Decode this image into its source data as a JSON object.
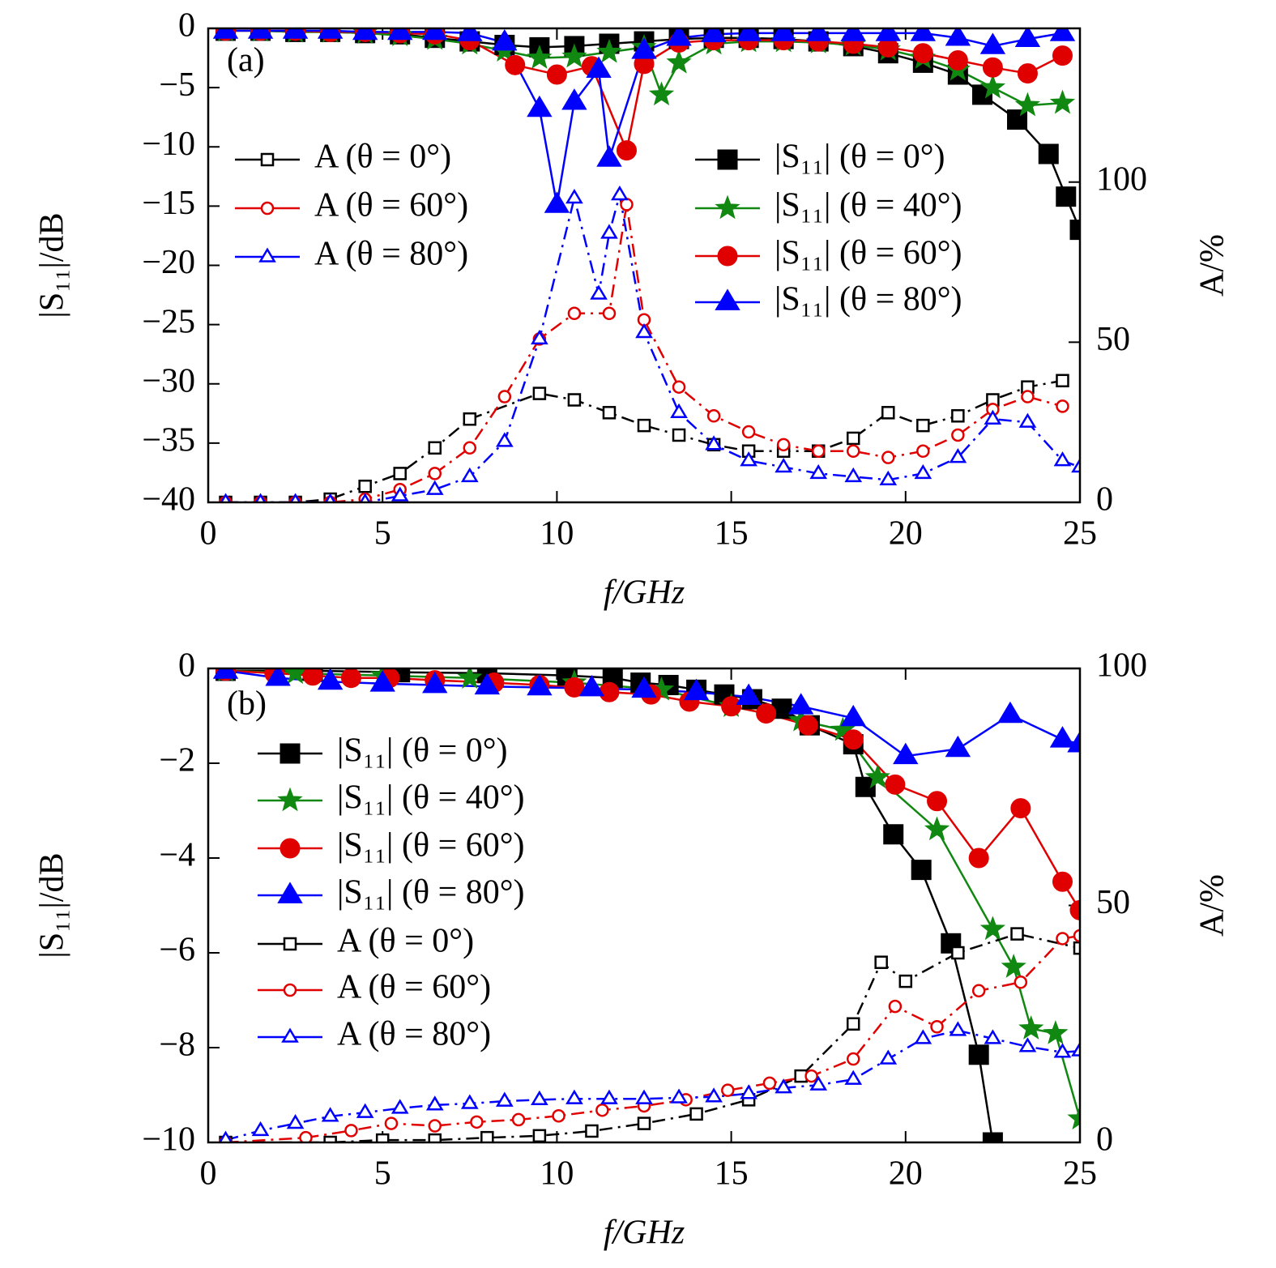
{
  "chart_data": [
    {
      "type": "line",
      "panel_label": "(a)",
      "xlabel": "f/GHz",
      "ylabel": "|S₁₁|/dB",
      "y2label": "A/%",
      "xlim": [
        0,
        25
      ],
      "xticks": [
        0,
        5,
        10,
        15,
        20,
        25
      ],
      "ylim": [
        -40,
        0
      ],
      "yticks": [
        0,
        {
          "value": -5,
          "label": "−5"
        },
        {
          "value": -10,
          "label": "−10"
        },
        {
          "value": -15,
          "label": "−15"
        },
        {
          "value": -20,
          "label": "−20"
        },
        {
          "value": -25,
          "label": "−25"
        },
        {
          "value": -30,
          "label": "−30"
        },
        {
          "value": -35,
          "label": "−35"
        },
        {
          "value": -40,
          "label": "−40"
        }
      ],
      "y2lim": [
        0,
        148
      ],
      "y2ticks": [
        0,
        50,
        100
      ],
      "series": [
        {
          "name": "A (θ = 0°)",
          "color": "#000000",
          "marker": "square",
          "filled": false,
          "line_style": "dashdot",
          "axis": "y2",
          "x": [
            0.5,
            1.5,
            2.5,
            3.5,
            4.5,
            5.5,
            6.5,
            7.5,
            9.5,
            10.5,
            11.5,
            12.5,
            13.5,
            14.5,
            15.5,
            16.5,
            17.5,
            18.5,
            19.5,
            20.5,
            21.5,
            22.5,
            23.5,
            24.5
          ],
          "values": [
            0,
            0,
            0,
            1,
            5,
            9,
            17,
            26,
            34,
            32,
            28,
            24,
            21,
            18,
            16,
            16,
            16,
            20,
            28,
            24,
            27,
            32,
            36,
            38
          ]
        },
        {
          "name": "A (θ = 60°)",
          "color": "#e00000",
          "marker": "circle",
          "filled": false,
          "line_style": "dashdot",
          "axis": "y2",
          "x": [
            0.5,
            1.5,
            2.5,
            3.5,
            4.5,
            5.5,
            6.5,
            7.5,
            8.5,
            9.5,
            10.5,
            11.5,
            12.0,
            12.5,
            13.5,
            14.5,
            15.5,
            16.5,
            17.5,
            18.5,
            19.5,
            20.5,
            21.5,
            22.5,
            23.5,
            24.5
          ],
          "values": [
            0,
            0,
            0,
            0,
            1,
            4,
            9,
            17,
            33,
            51,
            59,
            59,
            93,
            57,
            36,
            27,
            22,
            18,
            16,
            16,
            14,
            16,
            21,
            29,
            33,
            30
          ]
        },
        {
          "name": "A (θ = 80°)",
          "color": "#0000ff",
          "marker": "triangle",
          "filled": false,
          "line_style": "dashdot",
          "axis": "y2",
          "x": [
            0.5,
            1.5,
            2.5,
            3.5,
            4.5,
            5.5,
            6.5,
            7.5,
            8.5,
            9.5,
            10.5,
            11.2,
            11.5,
            11.8,
            12.5,
            13.5,
            14.5,
            15.5,
            16.5,
            17.5,
            18.5,
            19.5,
            20.5,
            21.5,
            22.5,
            23.5,
            24.5,
            25
          ],
          "values": [
            0,
            0,
            0,
            0,
            0,
            2,
            4,
            8,
            19,
            51,
            95,
            65,
            84,
            96,
            53,
            28,
            18,
            13,
            11,
            9,
            8,
            7,
            9,
            14,
            26,
            25,
            13,
            11
          ]
        },
        {
          "name": "|S₁₁| (θ = 0°)",
          "color": "#000000",
          "marker": "square",
          "filled": true,
          "line_style": "solid",
          "x": [
            0.5,
            1.5,
            2.5,
            3.5,
            4.5,
            5.5,
            6.5,
            7.5,
            8.5,
            9.5,
            10.5,
            11.5,
            12.5,
            13.5,
            14.5,
            15.5,
            16.5,
            17.5,
            18.5,
            19.5,
            20.5,
            21.5,
            22.2,
            23.2,
            24.1,
            24.6,
            25
          ],
          "values": [
            -0.2,
            -0.2,
            -0.3,
            -0.3,
            -0.4,
            -0.5,
            -0.8,
            -1.1,
            -1.4,
            -1.6,
            -1.5,
            -1.3,
            -1.1,
            -0.9,
            -0.8,
            -0.8,
            -0.9,
            -1.1,
            -1.5,
            -2.1,
            -2.9,
            -3.9,
            -5.6,
            -7.7,
            -10.6,
            -14.2,
            -17
          ]
        },
        {
          "name": "|S₁₁| (θ = 40°)",
          "color": "#118811",
          "marker": "star",
          "filled": true,
          "line_style": "solid",
          "x": [
            0.5,
            1.5,
            2.5,
            3.5,
            4.5,
            5.5,
            6.5,
            7.5,
            8.5,
            9.5,
            10.5,
            11.5,
            12.5,
            13.0,
            13.5,
            14.5,
            15.5,
            16.5,
            17.5,
            18.5,
            19.5,
            20.5,
            21.5,
            22.5,
            23.5,
            24.5
          ],
          "values": [
            -0.2,
            -0.2,
            -0.3,
            -0.3,
            -0.4,
            -0.6,
            -0.9,
            -1.3,
            -1.9,
            -2.5,
            -2.4,
            -2.0,
            -1.6,
            -5.6,
            -2.9,
            -1.3,
            -1.1,
            -1.1,
            -1.2,
            -1.4,
            -1.8,
            -2.5,
            -3.5,
            -5.0,
            -6.5,
            -6.3
          ]
        },
        {
          "name": "|S₁₁| (θ = 60°)",
          "color": "#e00000",
          "marker": "circle",
          "filled": true,
          "line_style": "solid",
          "x": [
            0.5,
            1.5,
            2.5,
            3.5,
            4.5,
            5.5,
            6.5,
            7.5,
            8.8,
            10.0,
            11.0,
            12.0,
            12.5,
            13.5,
            14.5,
            15.5,
            16.5,
            17.5,
            18.5,
            19.5,
            20.5,
            21.5,
            22.5,
            23.5,
            24.5
          ],
          "values": [
            -0.2,
            -0.2,
            -0.2,
            -0.3,
            -0.3,
            -0.4,
            -0.5,
            -1.0,
            -3.1,
            -3.9,
            -3.2,
            -10.3,
            -3.0,
            -1.2,
            -1.0,
            -1.0,
            -1.0,
            -1.1,
            -1.3,
            -1.6,
            -2.1,
            -2.7,
            -3.3,
            -3.8,
            -2.3
          ]
        },
        {
          "name": "|S₁₁| (θ = 80°)",
          "color": "#0000ff",
          "marker": "triangle",
          "filled": true,
          "line_style": "solid",
          "x": [
            0.5,
            1.5,
            2.5,
            3.5,
            4.5,
            5.5,
            6.5,
            7.5,
            8.5,
            9.5,
            10.0,
            10.5,
            11.2,
            11.5,
            12.5,
            13.5,
            14.5,
            15.5,
            16.5,
            17.5,
            18.5,
            19.5,
            20.5,
            21.5,
            22.5,
            23.5,
            24.5
          ],
          "values": [
            -0.2,
            -0.2,
            -0.2,
            -0.2,
            -0.3,
            -0.3,
            -0.3,
            -0.4,
            -1.2,
            -6.8,
            -14.9,
            -6.2,
            -3.5,
            -11.0,
            -1.9,
            -0.8,
            -0.5,
            -0.4,
            -0.4,
            -0.4,
            -0.4,
            -0.4,
            -0.4,
            -0.8,
            -1.5,
            -0.9,
            -0.4
          ]
        }
      ]
    },
    {
      "type": "line",
      "panel_label": "(b)",
      "xlabel": "f/GHz",
      "ylabel": "|S₁₁|/dB",
      "y2label": "A/%",
      "xlim": [
        0,
        25
      ],
      "xticks": [
        0,
        5,
        10,
        15,
        20,
        25
      ],
      "ylim": [
        -10,
        0
      ],
      "yticks": [
        0,
        {
          "value": -2,
          "label": "−2"
        },
        {
          "value": -4,
          "label": "−4"
        },
        {
          "value": -6,
          "label": "−6"
        },
        {
          "value": -8,
          "label": "−8"
        },
        {
          "value": -10,
          "label": "−10"
        }
      ],
      "y2lim": [
        0,
        100
      ],
      "y2ticks": [
        0,
        50,
        100
      ],
      "series": [
        {
          "name": "|S₁₁| (θ = 0°)",
          "color": "#000000",
          "marker": "square",
          "filled": true,
          "line_style": "solid",
          "x": [
            0.5,
            3,
            5.5,
            8,
            10.3,
            11.6,
            12.4,
            13.2,
            14,
            14.8,
            15.6,
            16.45,
            17.25,
            18.5,
            18.85,
            19.65,
            20.45,
            21.3,
            22.1,
            22.5
          ],
          "values": [
            -0.05,
            -0.05,
            -0.08,
            -0.1,
            -0.15,
            -0.2,
            -0.3,
            -0.35,
            -0.45,
            -0.55,
            -0.65,
            -0.85,
            -1.2,
            -1.6,
            -2.5,
            -3.5,
            -4.25,
            -5.8,
            -8.15,
            -10
          ]
        },
        {
          "name": "|S₁₁| (θ = 40°)",
          "color": "#118811",
          "marker": "star",
          "filled": true,
          "line_style": "solid",
          "x": [
            0.5,
            2.5,
            5,
            7.5,
            10.5,
            13,
            15,
            17,
            18.2,
            19.2,
            20.9,
            22.5,
            23.1,
            23.6,
            24.3,
            25
          ],
          "values": [
            -0.05,
            -0.1,
            -0.15,
            -0.2,
            -0.3,
            -0.45,
            -0.8,
            -1.1,
            -1.3,
            -2.3,
            -3.4,
            -5.5,
            -6.3,
            -7.6,
            -7.7,
            -9.5
          ]
        },
        {
          "name": "|S₁₁| (θ = 60°)",
          "color": "#e00000",
          "marker": "circle",
          "filled": true,
          "line_style": "solid",
          "x": [
            0.5,
            1.9,
            3,
            4.1,
            5.2,
            6.5,
            8.2,
            9.5,
            10.5,
            11.5,
            12.7,
            13.8,
            15,
            16,
            17.2,
            18.5,
            19.7,
            20.9,
            22.1,
            23.3,
            24.5,
            25
          ],
          "values": [
            -0.05,
            -0.1,
            -0.15,
            -0.2,
            -0.2,
            -0.25,
            -0.3,
            -0.35,
            -0.4,
            -0.5,
            -0.55,
            -0.7,
            -0.8,
            -0.95,
            -1.2,
            -1.5,
            -2.45,
            -2.8,
            -4.0,
            -2.95,
            -4.5,
            -5.1
          ]
        },
        {
          "name": "|S₁₁| (θ = 80°)",
          "color": "#0000ff",
          "marker": "triangle",
          "filled": true,
          "line_style": "solid",
          "x": [
            0.5,
            2,
            3.5,
            5,
            6.5,
            8,
            9.5,
            11,
            12.5,
            14,
            15.5,
            17,
            18.5,
            20,
            21.5,
            23,
            24.5,
            25
          ],
          "values": [
            -0.05,
            -0.2,
            -0.28,
            -0.32,
            -0.35,
            -0.38,
            -0.4,
            -0.42,
            -0.45,
            -0.5,
            -0.6,
            -0.8,
            -1.05,
            -1.85,
            -1.7,
            -0.98,
            -1.5,
            -1.6
          ]
        },
        {
          "name": "A (θ = 0°)",
          "color": "#000000",
          "marker": "square",
          "filled": false,
          "line_style": "dashdot",
          "axis": "y2",
          "x": [
            0.5,
            3.5,
            5,
            6.5,
            8,
            9.5,
            11,
            12.5,
            14,
            15.5,
            17,
            18.5,
            19.3,
            20,
            21.5,
            23.2,
            25
          ],
          "values": [
            0,
            0,
            0.5,
            0.5,
            1,
            1.4,
            2.4,
            4,
            6,
            9,
            14,
            25,
            38,
            34,
            40,
            44,
            41
          ]
        },
        {
          "name": "A (θ = 60°)",
          "color": "#e00000",
          "marker": "circle",
          "filled": false,
          "line_style": "dashdot",
          "axis": "y2",
          "x": [
            0.5,
            2.8,
            4.1,
            5.25,
            6.5,
            7.7,
            8.9,
            10.05,
            11.3,
            12.5,
            13.7,
            14.9,
            16.1,
            17.3,
            18.5,
            19.7,
            20.9,
            22.1,
            23.3,
            24.5,
            25
          ],
          "values": [
            0,
            1,
            2.5,
            4,
            3.5,
            4.3,
            4.8,
            5.6,
            6.8,
            7.7,
            9,
            11,
            12.5,
            14,
            17.6,
            28.7,
            24.4,
            32,
            33.8,
            43,
            43.6
          ]
        },
        {
          "name": "A (θ = 80°)",
          "color": "#0000ff",
          "marker": "triangle",
          "filled": false,
          "line_style": "dashdot",
          "axis": "y2",
          "x": [
            0.5,
            1.5,
            2.5,
            3.5,
            4.5,
            5.5,
            6.5,
            7.5,
            8.5,
            9.5,
            10.5,
            11.5,
            12.5,
            13.5,
            14.5,
            15.5,
            16.5,
            17.5,
            18.5,
            19.5,
            20.5,
            21.5,
            22.5,
            23.5,
            24.5,
            25
          ],
          "values": [
            0.5,
            2.5,
            4,
            5.5,
            6.3,
            7.2,
            7.9,
            8.2,
            8.7,
            9,
            9.2,
            9.2,
            9.2,
            9.4,
            9.6,
            10.3,
            11.5,
            12.1,
            13.3,
            17.6,
            21.9,
            23.6,
            21.9,
            20.2,
            19,
            19.3
          ]
        }
      ]
    }
  ]
}
